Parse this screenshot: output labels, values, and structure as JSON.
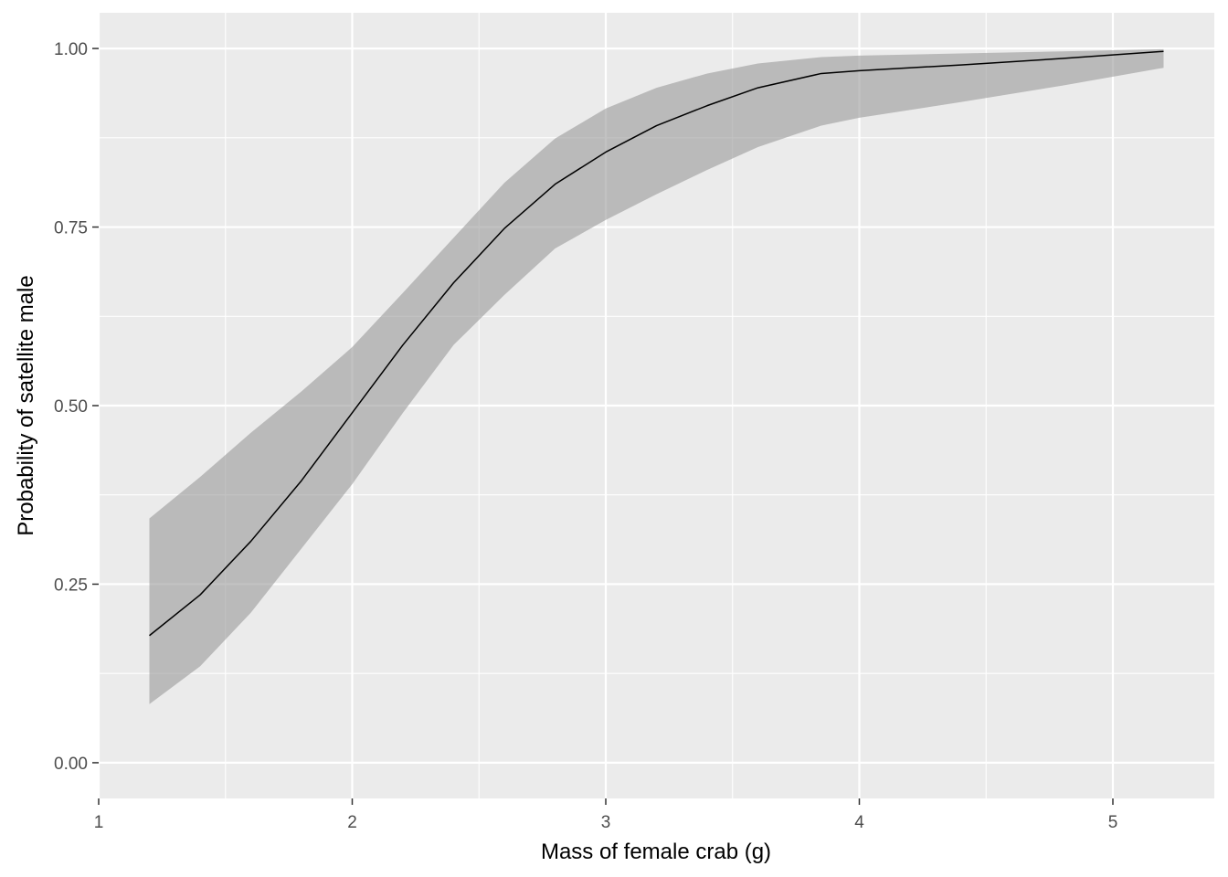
{
  "chart_data": {
    "type": "line",
    "title": "",
    "xlabel": "Mass of female crab (g)",
    "ylabel": "Probability of satellite male",
    "xlim": [
      1,
      5.4
    ],
    "ylim": [
      -0.05,
      1.05
    ],
    "x_ticks": [
      {
        "value": 1,
        "label": "1"
      },
      {
        "value": 2,
        "label": "2"
      },
      {
        "value": 3,
        "label": "3"
      },
      {
        "value": 4,
        "label": "4"
      },
      {
        "value": 5,
        "label": "5"
      }
    ],
    "x_minor": [
      1.5,
      2.5,
      3.5,
      4.5
    ],
    "y_ticks": [
      {
        "value": 0,
        "label": "0.00"
      },
      {
        "value": 0.25,
        "label": "0.25"
      },
      {
        "value": 0.5,
        "label": "0.50"
      },
      {
        "value": 0.75,
        "label": "0.75"
      },
      {
        "value": 1,
        "label": "1.00"
      }
    ],
    "y_minor": [
      0.125,
      0.375,
      0.625,
      0.875
    ],
    "grid": true,
    "colors": {
      "panel": "#EBEBEB",
      "grid": "#FFFFFF",
      "ribbon": "#999999",
      "line": "#000000"
    },
    "series": [
      {
        "x": [
          1.2,
          1.4,
          1.6,
          1.8,
          2.0,
          2.2,
          2.4,
          2.6,
          2.8,
          3.0,
          3.2,
          3.4,
          3.6,
          3.85,
          4.0,
          4.4,
          4.8,
          5.2
        ],
        "y": [
          0.178,
          0.235,
          0.31,
          0.395,
          0.49,
          0.585,
          0.672,
          0.748,
          0.81,
          0.855,
          0.892,
          0.92,
          0.945,
          0.965,
          0.969,
          0.977,
          0.986,
          0.996
        ],
        "ymin": [
          0.082,
          0.135,
          0.21,
          0.3,
          0.39,
          0.49,
          0.585,
          0.655,
          0.72,
          0.76,
          0.796,
          0.83,
          0.862,
          0.892,
          0.903,
          0.925,
          0.948,
          0.973
        ],
        "ymax": [
          0.342,
          0.4,
          0.462,
          0.52,
          0.582,
          0.658,
          0.735,
          0.812,
          0.874,
          0.916,
          0.945,
          0.965,
          0.979,
          0.988,
          0.99,
          0.993,
          0.996,
          0.999
        ]
      }
    ]
  }
}
